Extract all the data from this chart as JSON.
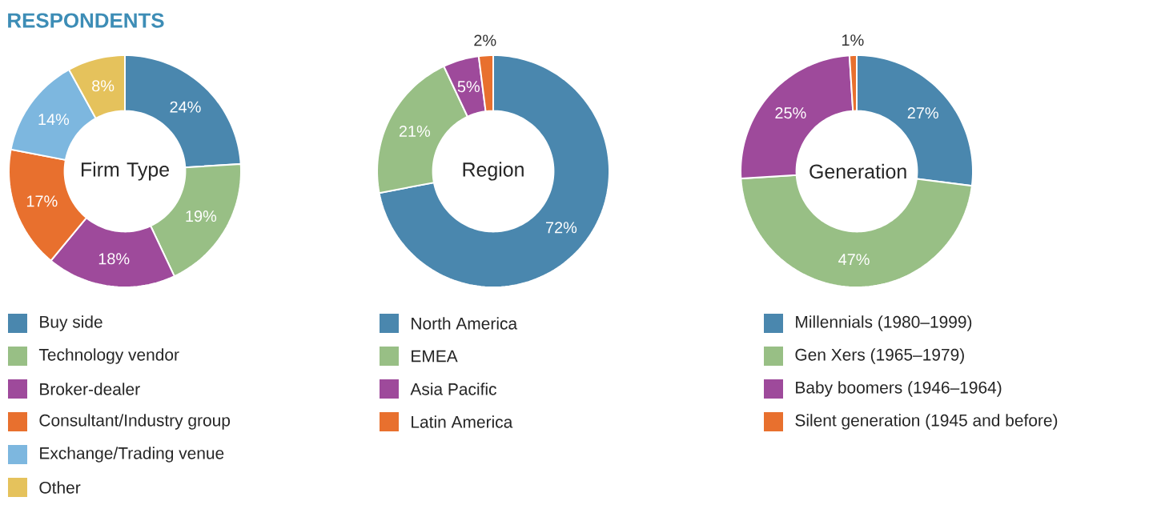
{
  "chart_data": [
    {
      "type": "donut",
      "title": "Firm Type",
      "annotations": [
        "RESPONDENTS"
      ],
      "legend": "bottom",
      "categories": [
        "Buy side",
        "Technology vendor",
        "Broker-dealer",
        "Consultant/Industry group",
        "Exchange/Trading venue",
        "Other"
      ],
      "values": [
        24,
        19,
        18,
        17,
        14,
        8
      ],
      "value_labels": [
        "24%",
        "19%",
        "18%",
        "17%",
        "14%",
        "8%"
      ],
      "colors": [
        "#4a87ae",
        "#98bf85",
        "#9e4a9b",
        "#e8702e",
        "#7db7df",
        "#e5c25c"
      ]
    },
    {
      "type": "donut",
      "title": "Region",
      "legend": "bottom",
      "categories": [
        "North America",
        "EMEA",
        "Asia Pacific",
        "Latin America"
      ],
      "values": [
        72,
        21,
        5,
        2
      ],
      "value_labels": [
        "72%",
        "21%",
        "5%",
        "2%"
      ],
      "colors": [
        "#4a87ae",
        "#98bf85",
        "#9e4a9b",
        "#e8702e"
      ]
    },
    {
      "type": "donut",
      "title": "Generation",
      "legend": "bottom",
      "categories": [
        "Millennials (1980–1999)",
        "Gen Xers (1965–1979)",
        "Baby boomers (1946–1964)",
        "Silent generation (1945 and before)"
      ],
      "values": [
        27,
        47,
        25,
        1
      ],
      "value_labels": [
        "27%",
        "47%",
        "25%",
        "1%"
      ],
      "colors": [
        "#4a87ae",
        "#98bf85",
        "#9e4a9b",
        "#e8702e"
      ]
    }
  ]
}
